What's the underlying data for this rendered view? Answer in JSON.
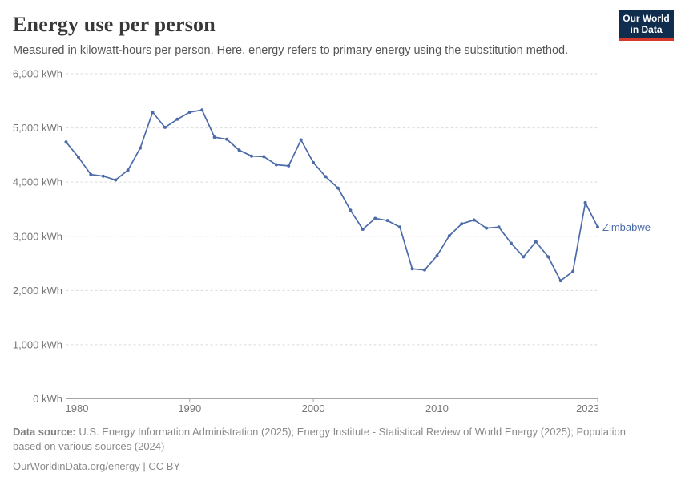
{
  "header": {
    "title": "Energy use per person",
    "subtitle": "Measured in kilowatt-hours per person. Here, energy refers to primary energy using the substitution method.",
    "logo": {
      "line1": "Our World",
      "line2": "in Data"
    }
  },
  "chart_data": {
    "type": "line",
    "title": "Energy use per person",
    "unit": "kWh",
    "xlabel": "",
    "ylabel": "kilowatt-hours per person",
    "xlim": [
      1980,
      2023
    ],
    "ylim": [
      0,
      6000
    ],
    "x_ticks": [
      1980,
      1990,
      2000,
      2010,
      2023
    ],
    "y_ticks": [
      0,
      1000,
      2000,
      3000,
      4000,
      5000,
      6000
    ],
    "y_tick_suffix": " kWh",
    "grid": "horizontal-dashed",
    "legend_position": "end-of-line-label",
    "series": [
      {
        "name": "Zimbabwe",
        "color": "#4C6BA9",
        "x": [
          1980,
          1981,
          1982,
          1983,
          1984,
          1985,
          1986,
          1987,
          1988,
          1989,
          1990,
          1991,
          1992,
          1993,
          1994,
          1995,
          1996,
          1997,
          1998,
          1999,
          2000,
          2001,
          2002,
          2003,
          2004,
          2005,
          2006,
          2007,
          2008,
          2009,
          2010,
          2011,
          2012,
          2013,
          2014,
          2015,
          2016,
          2017,
          2018,
          2019,
          2020,
          2021,
          2022,
          2023
        ],
        "values": [
          4740,
          4460,
          4140,
          4110,
          4040,
          4220,
          4630,
          5290,
          5010,
          5160,
          5290,
          5330,
          4830,
          4790,
          4590,
          4480,
          4470,
          4320,
          4300,
          4780,
          4360,
          4100,
          3890,
          3480,
          3130,
          3330,
          3290,
          3170,
          2400,
          2380,
          2640,
          3010,
          3230,
          3300,
          3150,
          3170,
          2870,
          2620,
          2900,
          2620,
          2180,
          2350,
          3620,
          3170
        ]
      }
    ]
  },
  "footer": {
    "datasource_label": "Data source:",
    "datasource_text": " U.S. Energy Information Administration (2025); Energy Institute - Statistical Review of World Energy (2025); Population based on various sources (2024)",
    "link_text": "OurWorldinData.org/energy | CC BY"
  },
  "colors": {
    "line": "#4C6BA9",
    "grid": "#dadada",
    "axis": "#a5a5a5",
    "tick_label": "#777777",
    "logo_bg": "#102d4e",
    "logo_bar": "#d6382e"
  }
}
